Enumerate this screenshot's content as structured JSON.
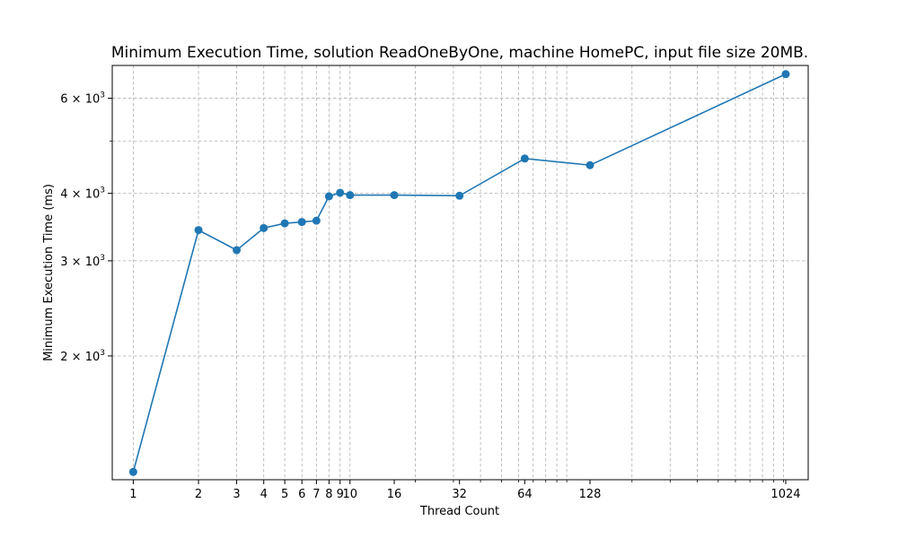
{
  "chart_data": {
    "type": "line",
    "title": "Minimum Execution Time, solution ReadOneByOne, machine HomePC, input file size 20MB.",
    "xlabel": "Thread Count",
    "ylabel": "Minimum Execution Time (ms)",
    "x_scale": "log",
    "y_scale": "log",
    "grid": true,
    "x_ticks": [
      1,
      2,
      3,
      4,
      5,
      6,
      7,
      8,
      9,
      10,
      16,
      32,
      64,
      128,
      1024
    ],
    "y_ticks": [
      2000,
      3000,
      4000,
      6000
    ],
    "y_tick_labels": [
      {
        "base": "2 × 10",
        "exp": "3"
      },
      {
        "base": "3 × 10",
        "exp": "3"
      },
      {
        "base": "4 × 10",
        "exp": "3"
      },
      {
        "base": "6 × 10",
        "exp": "3"
      }
    ],
    "xlim": [
      0.8,
      1300
    ],
    "ylim": [
      1180,
      6900
    ],
    "series": [
      {
        "color": "#1f77b4",
        "x": [
          1,
          2,
          3,
          4,
          5,
          6,
          7,
          8,
          9,
          10,
          16,
          32,
          64,
          128,
          1024
        ],
        "y": [
          1220,
          3420,
          3140,
          3450,
          3520,
          3540,
          3560,
          3950,
          4010,
          3970,
          3970,
          3960,
          4640,
          4510,
          6650
        ]
      }
    ]
  }
}
